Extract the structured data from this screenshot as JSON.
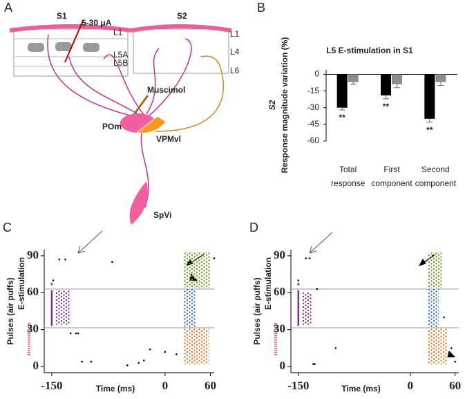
{
  "panel_a": {
    "letter": "A",
    "s1": "S1",
    "s2": "S2",
    "s1_layers": [
      "L1",
      "L5A",
      "L5B"
    ],
    "s2_layers": [
      "L1",
      "L4",
      "L6"
    ],
    "current": "5-30 μA",
    "drug": "Muscimol",
    "nuclei": [
      "POm",
      "VPMvl",
      "SpVi"
    ]
  },
  "chart_data": [
    {
      "type": "bar",
      "letter": "B",
      "title": "L5 E-stimulation in S1",
      "y_label": "Response magnitude variation (%)",
      "y_label_prefix": "S2",
      "categories": [
        [
          "Total",
          "response"
        ],
        [
          "First",
          "component"
        ],
        [
          "Second",
          "component"
        ]
      ],
      "series": [
        {
          "color": "#000000",
          "values": [
            -30,
            -19,
            -40
          ],
          "errors": [
            2,
            3,
            3
          ],
          "annotation": "**"
        },
        {
          "color": "#8c8c8c",
          "values": [
            -7,
            -9,
            -7
          ],
          "errors": [
            2,
            3,
            3
          ]
        }
      ],
      "ylim": [
        -60,
        4
      ],
      "yticks": [
        0,
        -15,
        -30,
        -45,
        -60
      ]
    },
    {
      "type": "raster",
      "letter": "C",
      "x_label": "Time (ms)",
      "y_label": "Pulses (air puffs)",
      "stim_label": "E-stimulation",
      "stim_marker": "*",
      "xlim": [
        -160,
        65
      ],
      "ylim": [
        -5,
        95
      ],
      "xticks": [
        -150,
        0,
        60
      ],
      "yticks": [
        0,
        30,
        60,
        90
      ],
      "dividers": [
        31.5,
        63
      ],
      "stim": {
        "x": -150,
        "y": [
          33,
          62
        ],
        "color": "#7b3294"
      },
      "clusters": [
        {
          "color": "#7b3294",
          "x": [
            -145,
            -125
          ],
          "y": [
            34,
            62
          ]
        },
        {
          "color": "#6a9a1f",
          "x": [
            25,
            60
          ],
          "y": [
            64,
            93
          ]
        },
        {
          "color": "#3a6fd8",
          "x": [
            25,
            40
          ],
          "y": [
            32,
            63
          ]
        },
        {
          "color": "#e87722",
          "x": [
            25,
            58
          ],
          "y": [
            2,
            31
          ]
        }
      ],
      "dots": {
        "x": [
          -140,
          -132,
          -148,
          -125,
          -118,
          -115,
          -110,
          -98,
          -70,
          -50,
          -35,
          -28,
          -20,
          0,
          15,
          65
        ],
        "y": [
          87,
          87,
          70,
          27,
          27,
          27,
          4,
          4,
          85,
          1,
          3,
          5,
          14,
          12,
          10,
          88
        ]
      }
    },
    {
      "type": "raster",
      "letter": "D",
      "x_label": "Time (ms)",
      "y_label": "Pulses (air puffs)",
      "stim_label": "E-stimulation",
      "stim_marker": "*",
      "xlim": [
        -160,
        65
      ],
      "ylim": [
        -5,
        95
      ],
      "xticks": [
        -150,
        0,
        60
      ],
      "yticks": [
        0,
        30,
        60,
        90
      ],
      "dividers": [
        31.5,
        63
      ],
      "stim": {
        "x": -150,
        "y": [
          33,
          62
        ],
        "color": "#7b3294"
      },
      "clusters": [
        {
          "color": "#7b3294",
          "x": [
            -145,
            -132
          ],
          "y": [
            34,
            60
          ]
        },
        {
          "color": "#6a9a1f",
          "x": [
            24,
            42
          ],
          "y": [
            64,
            93
          ]
        },
        {
          "color": "#3a6fd8",
          "x": [
            24,
            38
          ],
          "y": [
            32,
            63
          ]
        },
        {
          "color": "#e87722",
          "x": [
            24,
            50
          ],
          "y": [
            2,
            31
          ]
        }
      ],
      "dots": {
        "x": [
          -150,
          -140,
          -135,
          -125,
          -100,
          -130,
          -128,
          30,
          45,
          55,
          60
        ],
        "y": [
          70,
          88,
          88,
          63,
          15,
          2,
          2,
          90,
          40,
          15,
          4
        ]
      }
    }
  ]
}
